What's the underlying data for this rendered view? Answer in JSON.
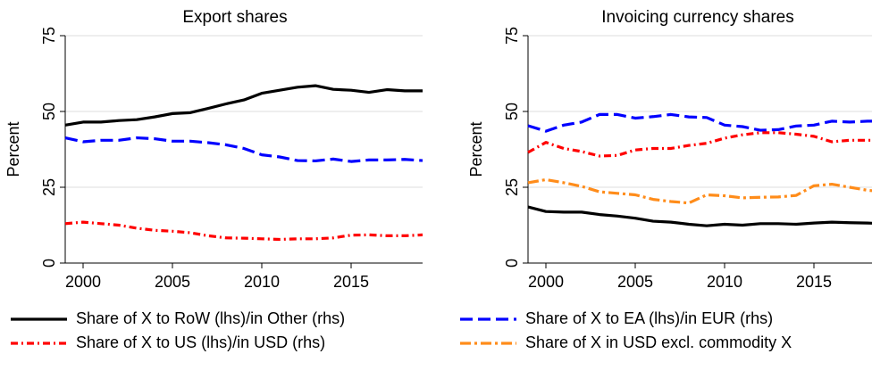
{
  "chart_data": [
    {
      "type": "line",
      "title": "Export shares",
      "y_label": "Percent",
      "x": [
        1999,
        2000,
        2001,
        2002,
        2003,
        2004,
        2005,
        2006,
        2007,
        2008,
        2009,
        2010,
        2011,
        2012,
        2013,
        2014,
        2015,
        2016,
        2017,
        2018,
        2019
      ],
      "xlim": [
        1999,
        2019
      ],
      "xticks": [
        2000,
        2005,
        2010,
        2015
      ],
      "ylim": [
        0,
        75
      ],
      "yticks": [
        0,
        25,
        50,
        75
      ],
      "grid": true,
      "series": [
        {
          "color": "#000000",
          "dash": "none",
          "values": [
            45.5,
            46.5,
            46.5,
            47,
            47.3,
            48.2,
            49.3,
            49.6,
            51,
            52.5,
            53.8,
            56,
            57,
            58,
            58.5,
            57.3,
            57,
            56.3,
            57.2,
            56.8,
            56.8
          ]
        },
        {
          "color": "#0000ff",
          "dash": "14 6",
          "values": [
            41.3,
            40,
            40.5,
            40.5,
            41.3,
            41,
            40.2,
            40.2,
            39.7,
            39,
            37.8,
            35.7,
            35,
            33.8,
            33.7,
            34.3,
            33.5,
            34,
            34,
            34.2,
            33.8
          ]
        },
        {
          "color": "#ff0000",
          "dash": "8 4 2 4",
          "values": [
            13,
            13.5,
            13,
            12.5,
            11.5,
            10.8,
            10.5,
            10,
            9,
            8.3,
            8.2,
            8,
            7.8,
            8,
            8,
            8.3,
            9.2,
            9.3,
            9,
            9,
            9.3
          ]
        }
      ]
    },
    {
      "type": "line",
      "title": "Invoicing currency shares",
      "y_label": "Percent",
      "x": [
        1999,
        2000,
        2001,
        2002,
        2003,
        2004,
        2005,
        2006,
        2007,
        2008,
        2009,
        2010,
        2011,
        2012,
        2013,
        2014,
        2015,
        2016,
        2017,
        2018,
        2019
      ],
      "xlim": [
        1999,
        2019
      ],
      "xticks": [
        2000,
        2005,
        2010,
        2015
      ],
      "ylim": [
        0,
        75
      ],
      "yticks": [
        0,
        25,
        50,
        75
      ],
      "grid": true,
      "series": [
        {
          "color": "#000000",
          "dash": "none",
          "values": [
            18.5,
            17,
            16.8,
            16.8,
            16,
            15.5,
            14.8,
            13.8,
            13.5,
            12.8,
            12.3,
            12.8,
            12.5,
            13,
            13,
            12.8,
            13.2,
            13.5,
            13.3,
            13.2,
            13
          ]
        },
        {
          "color": "#0000ff",
          "dash": "14 6",
          "values": [
            45.3,
            43.5,
            45.5,
            46.5,
            49,
            49,
            47.8,
            48.3,
            49,
            48.2,
            48,
            45.5,
            45,
            43.8,
            44,
            45.2,
            45.5,
            46.8,
            46.5,
            46.8,
            46.8
          ]
        },
        {
          "color": "#ff0000",
          "dash": "8 4 2 4",
          "values": [
            36.5,
            39.8,
            37.8,
            36.8,
            35.3,
            35.5,
            37.3,
            37.8,
            37.8,
            38.8,
            39.5,
            41.2,
            42.3,
            43,
            43,
            42.5,
            41.8,
            40,
            40.5,
            40.5,
            40.5
          ]
        },
        {
          "color": "#ff8c1a",
          "dash": "12 4 3 4",
          "values": [
            26.5,
            27.5,
            26.5,
            25.3,
            23.5,
            23,
            22.5,
            21,
            20.3,
            19.8,
            22.5,
            22.2,
            21.5,
            21.7,
            21.8,
            22.3,
            25.5,
            26,
            25,
            24,
            23.5
          ]
        }
      ]
    }
  ],
  "legend": [
    {
      "label": "Share of X to RoW (lhs)/in Other (rhs)",
      "color": "#000000",
      "dash": "none"
    },
    {
      "label": "Share of X to EA (lhs)/in EUR (rhs)",
      "color": "#0000ff",
      "dash": "14 6"
    },
    {
      "label": "Share of X to US (lhs)/in USD (rhs)",
      "color": "#ff0000",
      "dash": "8 4 2 4"
    },
    {
      "label": "Share of X in USD excl. commodity X",
      "color": "#ff8c1a",
      "dash": "12 4 3 4"
    }
  ]
}
